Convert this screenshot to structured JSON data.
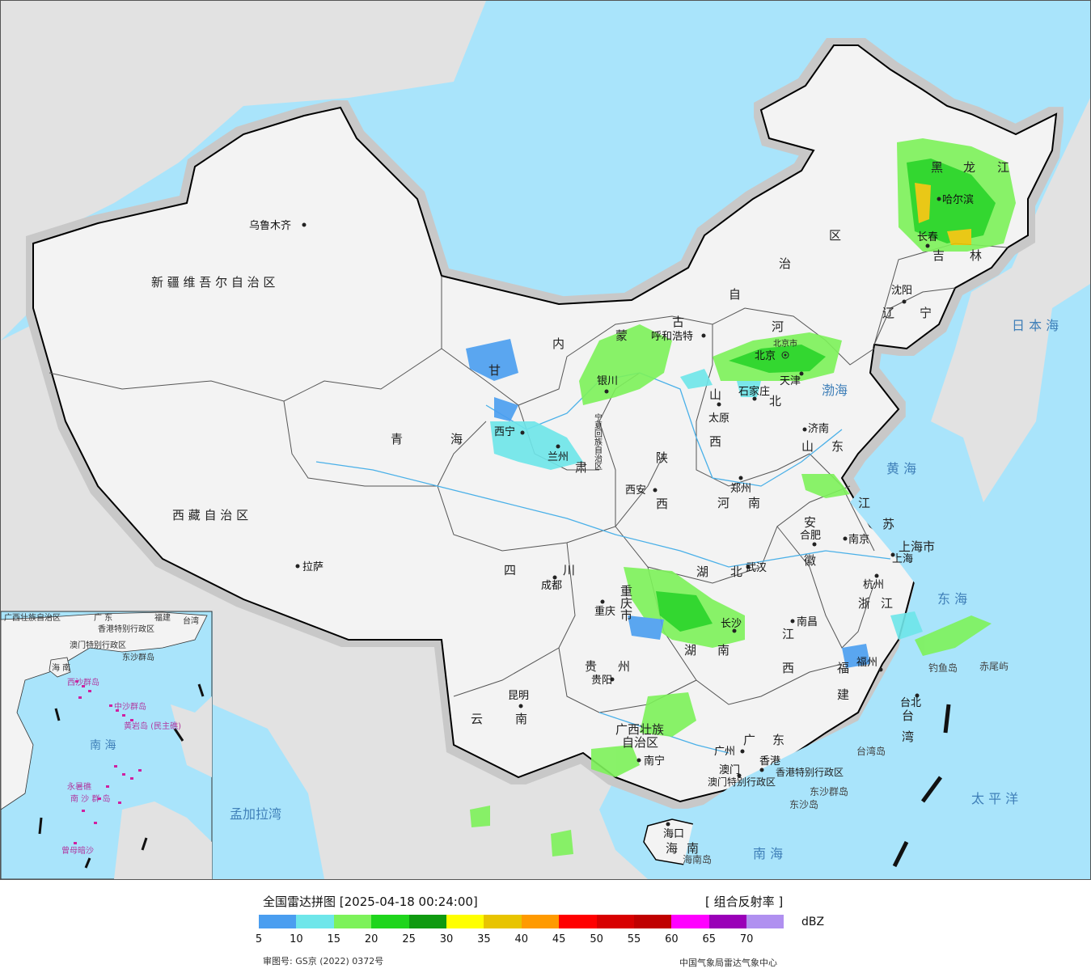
{
  "legend": {
    "title": "全国雷达拼图 [2025-04-18 00:24:00]",
    "product": "[ 组合反射率 ]",
    "unit": "dBZ",
    "ticks": [
      "5",
      "10",
      "15",
      "20",
      "25",
      "30",
      "35",
      "40",
      "45",
      "50",
      "55",
      "60",
      "65",
      "70"
    ],
    "colors": [
      "#4a9ef0",
      "#6ee6ea",
      "#7df25a",
      "#1fd51c",
      "#0f9a10",
      "#ffff00",
      "#e8c400",
      "#ff9a00",
      "#ff0000",
      "#d80000",
      "#c00000",
      "#ff00ff",
      "#9a00b8",
      "#b090f0"
    ],
    "approval_no": "审图号: GS京 (2022) 0372号",
    "credit": "中国气象局雷达气象中心"
  },
  "map": {
    "provinces": {
      "xinjiang": "新 疆 维 吾 尔 自 治 区",
      "xizang": "西 藏 自 治 区",
      "qinghai_1": "青",
      "qinghai_2": "海",
      "neimenggu_1": "内",
      "neimenggu_2": "蒙",
      "neimenggu_3": "古",
      "neimenggu_4": "自",
      "neimenggu_5": "治",
      "neimenggu_6": "区",
      "heilongjiang_1": "黑",
      "heilongjiang_2": "龙",
      "heilongjiang_3": "江",
      "jilin_1": "吉",
      "jilin_2": "林",
      "liaoning_1": "辽",
      "liaoning_2": "宁",
      "hebei_1": "河",
      "hebei_2": "北",
      "beijing": "北京市",
      "shanxi_1": "山",
      "shanxi_2": "西",
      "shandong_1": "山",
      "shandong_2": "东",
      "henan_1": "河",
      "henan_2": "南",
      "shaanxi_1": "陕",
      "shaanxi_2": "西",
      "gansu_1": "甘",
      "gansu_2": "肃",
      "ningxia": "宁夏回族自治区",
      "sichuan_1": "四",
      "sichuan_2": "川",
      "chongqing": "重庆市",
      "hubei_1": "湖",
      "hubei_2": "北",
      "hunan_1": "湖",
      "hunan_2": "南",
      "anhui_1": "安",
      "anhui_2": "徽",
      "jiangsu_1": "江",
      "jiangsu_2": "苏",
      "shanghai": "上海市",
      "zhejiang_1": "浙",
      "zhejiang_2": "江",
      "jiangxi_1": "江",
      "jiangxi_2": "西",
      "fujian_1": "福",
      "fujian_2": "建",
      "guizhou_1": "贵",
      "guizhou_2": "州",
      "yunnan_1": "云",
      "yunnan_2": "南",
      "guangxi_1": "广西壮族",
      "guangxi_2": "自治区",
      "guangdong_1": "广",
      "guangdong_2": "东",
      "hainan_1": "海",
      "hainan_2": "南",
      "taiwan_1": "台",
      "taiwan_2": "湾",
      "hongkong": "香港特别行政区",
      "macau": "澳门特别行政区"
    },
    "cities": {
      "urumqi": "乌鲁木齐",
      "lhasa": "拉萨",
      "xining": "西宁",
      "lanzhou": "兰州",
      "yinchuan": "银川",
      "hohhot": "呼和浩特",
      "beijing": "北京",
      "tianjin": "天津",
      "shijiazhuang": "石家庄",
      "taiyuan": "太原",
      "jinan": "济南",
      "zhengzhou": "郑州",
      "xian": "西安",
      "chengdu": "成都",
      "chongqing": "重庆",
      "wuhan": "武汉",
      "hefei": "合肥",
      "nanjing": "南京",
      "shanghai": "上海",
      "hangzhou": "杭州",
      "nanchang": "南昌",
      "changsha": "长沙",
      "guiyang": "贵阳",
      "kunming": "昆明",
      "nanning": "南宁",
      "guangzhou": "广州",
      "hongkong": "香港",
      "macau": "澳门",
      "fuzhou": "福州",
      "taipei": "台北",
      "haikou": "海口",
      "harbin": "哈尔滨",
      "changchun": "长春",
      "shenyang": "沈阳"
    },
    "seas": {
      "bohai": "渤海",
      "huanghai": "黄 海",
      "donghai": "东 海",
      "nanhai": "南 海",
      "riben": "日 本 海",
      "taiping": "太 平 洋",
      "mengjiala": "孟加拉湾"
    },
    "islands": {
      "diaoyu": "钓鱼岛",
      "chiwei": "赤尾屿",
      "taiwan_dao": "台湾岛",
      "dongsha_qundao": "东沙群岛",
      "dongsha_dao": "东沙岛",
      "hainan_dao": "海南岛"
    },
    "inset": {
      "guangxi": "广西壮族自治区",
      "guangdong": "广 东",
      "fujian": "福建",
      "taiwan": "台湾",
      "hk": "香港特别行政区",
      "macau": "澳门特别行政区",
      "dongsha": "东沙群岛",
      "hainan": "海 南",
      "xisha": "西沙群岛",
      "zhongsha": "中沙群岛",
      "huangyan": "黄岩岛 (民主礁)",
      "nanhai": "南 海",
      "nansha": "南 沙 群 岛",
      "yongshu": "永暑礁",
      "zengmu": "曾母暗沙"
    }
  }
}
